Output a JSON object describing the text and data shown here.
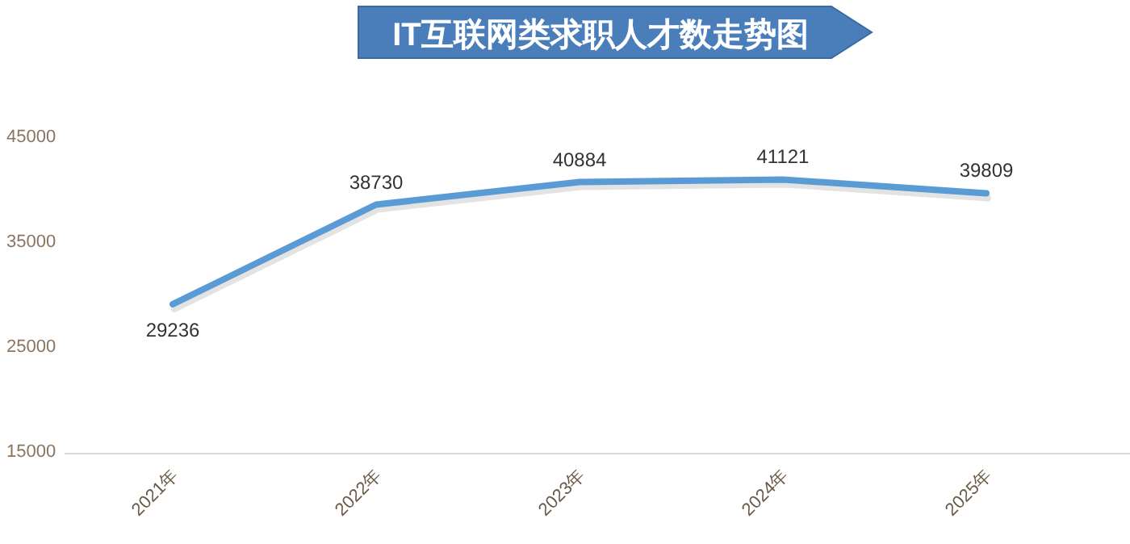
{
  "chart_data": {
    "type": "line",
    "title": "IT互联网类求职人才数走势图",
    "categories": [
      "2021年",
      "2022年",
      "2023年",
      "2024年",
      "2025年"
    ],
    "series": [
      {
        "color": "#5b9bd5",
        "values": [
          29236,
          38730,
          40884,
          41121,
          39809
        ]
      }
    ],
    "ylim": [
      15000,
      45000
    ],
    "yticks": [
      15000,
      25000,
      35000,
      45000
    ],
    "data_labels": true,
    "grid": false,
    "marker": "none",
    "line_style": "solid"
  }
}
